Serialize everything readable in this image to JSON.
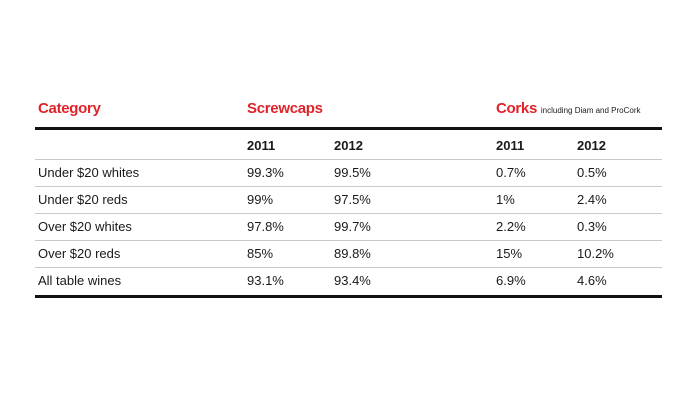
{
  "header": {
    "category": "Category",
    "screwcaps": "Screwcaps",
    "corks": "Corks",
    "corks_note": "including Diam and ProCork"
  },
  "table": {
    "years": [
      "2011",
      "2012",
      "2011",
      "2012"
    ],
    "rows": [
      [
        "Under $20 whites",
        "99.3%",
        "99.5%",
        "0.7%",
        "0.5%"
      ],
      [
        "Under $20 reds",
        "99%",
        "97.5%",
        "1%",
        "2.4%"
      ],
      [
        "Over $20 whites",
        "97.8%",
        "99.7%",
        "2.2%",
        "0.3%"
      ],
      [
        "Over $20 reds",
        "85%",
        "89.8%",
        "15%",
        "10.2%"
      ],
      [
        "All table wines",
        "93.1%",
        "93.4%",
        "6.9%",
        "4.6%"
      ]
    ]
  }
}
